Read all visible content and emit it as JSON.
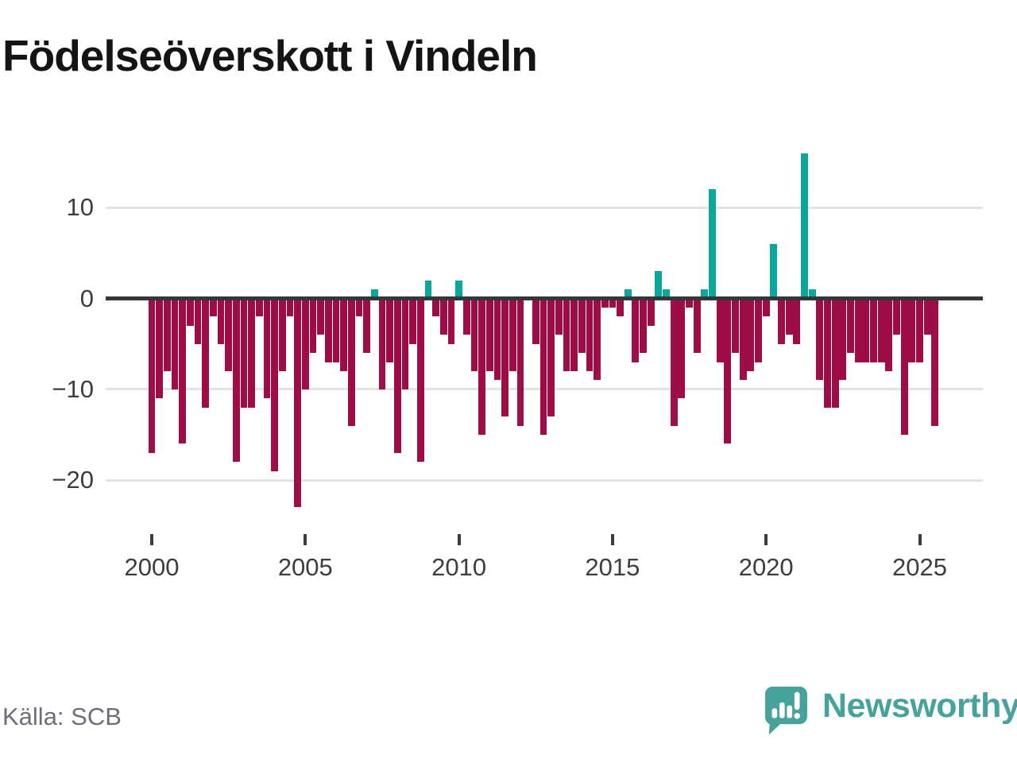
{
  "title": "Födelseöverskott i Vindeln",
  "source": "Källa: SCB",
  "brand": {
    "name": "Newsworthy",
    "logo": "speech-bubble-bar-chart-icon",
    "color": "#46a39c"
  },
  "colors": {
    "positive": "#0ca79c",
    "negative": "#9e0d48",
    "zero_line": "#35383b",
    "gridline": "#e4e4e4",
    "axis_text": "#3d3d3d",
    "source_text": "#6e6e78",
    "title_text": "#141414",
    "background": "#ffffff"
  },
  "chart_data": {
    "type": "bar",
    "title": "Födelseöverskott i Vindeln",
    "xlabel": "",
    "ylabel": "",
    "x_unit": "quarter",
    "ylim": [
      -25,
      18
    ],
    "grid": "horizontal",
    "legend": "none",
    "note": "Quarterly birth surplus; bars colored by sign; value 0 (2012 Q2) renders no bar; 2025 has three quarters",
    "y_ticks": [
      {
        "v": 10,
        "label": "10"
      },
      {
        "v": 0,
        "label": "0"
      },
      {
        "v": -10,
        "label": "−10"
      },
      {
        "v": -20,
        "label": "−20"
      }
    ],
    "x_ticks": [
      {
        "year": 2000,
        "label": "2000"
      },
      {
        "year": 2005,
        "label": "2005"
      },
      {
        "year": 2010,
        "label": "2010"
      },
      {
        "year": 2015,
        "label": "2015"
      },
      {
        "year": 2020,
        "label": "2020"
      },
      {
        "year": 2025,
        "label": "2025"
      }
    ],
    "years": [
      {
        "year": 2000,
        "values": [
          -17,
          -11,
          -8,
          -10
        ]
      },
      {
        "year": 2001,
        "values": [
          -16,
          -3,
          -5,
          -12
        ]
      },
      {
        "year": 2002,
        "values": [
          -2,
          -5,
          -8,
          -18
        ]
      },
      {
        "year": 2003,
        "values": [
          -12,
          -12,
          -2,
          -11
        ]
      },
      {
        "year": 2004,
        "values": [
          -19,
          -8,
          -2,
          -23
        ]
      },
      {
        "year": 2005,
        "values": [
          -10,
          -6,
          -4,
          -7
        ]
      },
      {
        "year": 2006,
        "values": [
          -7,
          -8,
          -14,
          -2
        ]
      },
      {
        "year": 2007,
        "values": [
          -6,
          1,
          -10,
          -7
        ]
      },
      {
        "year": 2008,
        "values": [
          -17,
          -10,
          -5,
          -18
        ]
      },
      {
        "year": 2009,
        "values": [
          2,
          -2,
          -4,
          -5
        ]
      },
      {
        "year": 2010,
        "values": [
          2,
          -4,
          -8,
          -15
        ]
      },
      {
        "year": 2011,
        "values": [
          -8,
          -9,
          -13,
          -8
        ]
      },
      {
        "year": 2012,
        "values": [
          -14,
          0,
          -5,
          -15
        ]
      },
      {
        "year": 2013,
        "values": [
          -13,
          -4,
          -8,
          -8
        ]
      },
      {
        "year": 2014,
        "values": [
          -6,
          -8,
          -9,
          -1
        ]
      },
      {
        "year": 2015,
        "values": [
          -1,
          -2,
          1,
          -7
        ]
      },
      {
        "year": 2016,
        "values": [
          -6,
          -3,
          3,
          1
        ]
      },
      {
        "year": 2017,
        "values": [
          -14,
          -11,
          -1,
          -6
        ]
      },
      {
        "year": 2018,
        "values": [
          1,
          12,
          -7,
          -16
        ]
      },
      {
        "year": 2019,
        "values": [
          -6,
          -9,
          -8,
          -7
        ]
      },
      {
        "year": 2020,
        "values": [
          -2,
          6,
          -5,
          -4
        ]
      },
      {
        "year": 2021,
        "values": [
          -5,
          16,
          1,
          -9
        ]
      },
      {
        "year": 2022,
        "values": [
          -12,
          -12,
          -9,
          -6
        ]
      },
      {
        "year": 2023,
        "values": [
          -7,
          -7,
          -7,
          -7
        ]
      },
      {
        "year": 2024,
        "values": [
          -8,
          -4,
          -15,
          -7
        ]
      },
      {
        "year": 2025,
        "values": [
          -7,
          -4,
          -14
        ]
      }
    ]
  }
}
